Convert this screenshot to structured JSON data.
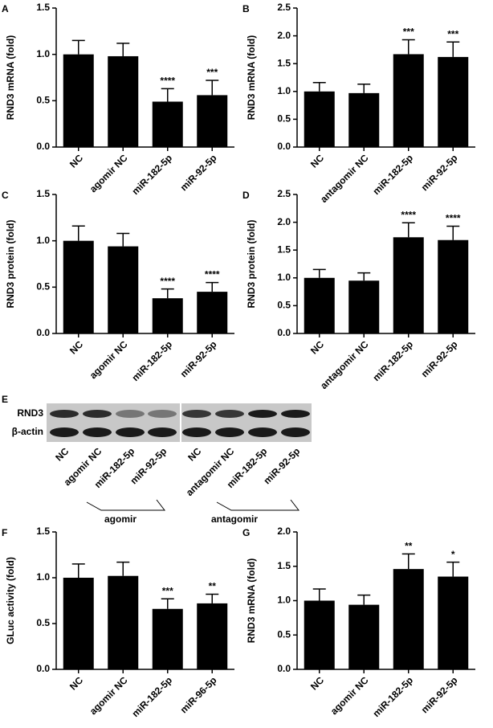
{
  "chart_data": [
    {
      "type": "bar",
      "panel": "A",
      "ylabel": "RND3 mRNA (fold)",
      "categories": [
        "NC",
        "agomir NC",
        "miR-182-5p",
        "miR-92-5p"
      ],
      "values": [
        1.0,
        0.98,
        0.49,
        0.56
      ],
      "errors": [
        0.15,
        0.14,
        0.14,
        0.16
      ],
      "annotations": [
        null,
        null,
        "****",
        "***"
      ],
      "color": "#000000",
      "ylim": [
        0,
        1.5
      ],
      "yticks": [
        {
          "value": 0,
          "label": "0.0"
        },
        0.5,
        {
          "value": 1,
          "label": "1.0"
        },
        1.5
      ]
    },
    {
      "type": "bar",
      "panel": "B",
      "ylabel": "RND3 mRNA (fold)",
      "categories": [
        "NC",
        "antagomir NC",
        "miR-182-5p",
        "miR-92-5p"
      ],
      "values": [
        1.0,
        0.97,
        1.67,
        1.62
      ],
      "errors": [
        0.16,
        0.16,
        0.26,
        0.27
      ],
      "annotations": [
        null,
        null,
        "***",
        "***"
      ],
      "color": "#000000",
      "ylim": [
        0,
        2.5
      ],
      "yticks": [
        {
          "value": 0,
          "label": "0.0"
        },
        0.5,
        {
          "value": 1,
          "label": "1.0"
        },
        1.5,
        {
          "value": 2,
          "label": "2.0"
        },
        2.5
      ]
    },
    {
      "type": "bar",
      "panel": "C",
      "ylabel": "RND3 protein (fold)",
      "categories": [
        "NC",
        "agomir NC",
        "miR-182-5p",
        "miR-92-5p"
      ],
      "values": [
        1.0,
        0.94,
        0.38,
        0.45
      ],
      "errors": [
        0.16,
        0.14,
        0.1,
        0.1
      ],
      "annotations": [
        null,
        null,
        "****",
        "****"
      ],
      "color": "#000000",
      "ylim": [
        0,
        1.5
      ],
      "yticks": [
        {
          "value": 0,
          "label": "0.0"
        },
        0.5,
        {
          "value": 1,
          "label": "1.0"
        },
        1.5
      ]
    },
    {
      "type": "bar",
      "panel": "D",
      "ylabel": "RND3 protein (fold)",
      "categories": [
        "NC",
        "antagomir NC",
        "miR-182-5p",
        "miR-92-5p"
      ],
      "values": [
        1.0,
        0.95,
        1.73,
        1.68
      ],
      "errors": [
        0.15,
        0.14,
        0.26,
        0.25
      ],
      "annotations": [
        null,
        null,
        "****",
        "****"
      ],
      "color": "#000000",
      "ylim": [
        0,
        2.5
      ],
      "yticks": [
        {
          "value": 0,
          "label": "0.0"
        },
        0.5,
        {
          "value": 1,
          "label": "1.0"
        },
        1.5,
        {
          "value": 2,
          "label": "2.0"
        },
        2.5
      ]
    },
    {
      "type": "bar",
      "panel": "F",
      "ylabel": "GLuc activity (fold)",
      "categories": [
        "NC",
        "agomir NC",
        "miR-182-5p",
        "miR-96-5p"
      ],
      "values": [
        1.0,
        1.02,
        0.66,
        0.72
      ],
      "errors": [
        0.15,
        0.15,
        0.11,
        0.1
      ],
      "annotations": [
        null,
        null,
        "***",
        "**"
      ],
      "color": "#000000",
      "ylim": [
        0,
        1.5
      ],
      "yticks": [
        {
          "value": 0,
          "label": "0.0"
        },
        0.5,
        {
          "value": 1,
          "label": "1.0"
        },
        1.5
      ]
    },
    {
      "type": "bar",
      "panel": "G",
      "ylabel": "RND3 mRNA (fold)",
      "categories": [
        "NC",
        "agomir NC",
        "miR-182-5p",
        "miR-92-5p"
      ],
      "values": [
        1.0,
        0.94,
        1.46,
        1.35
      ],
      "errors": [
        0.17,
        0.14,
        0.22,
        0.21
      ],
      "annotations": [
        null,
        null,
        "**",
        "*"
      ],
      "color": "#000000",
      "ylim": [
        0,
        2
      ],
      "yticks": [
        {
          "value": 0,
          "label": "0.0"
        },
        0.5,
        {
          "value": 1,
          "label": "1.0"
        },
        1.5,
        {
          "value": 2,
          "label": "2.0"
        }
      ]
    }
  ],
  "blot": {
    "panel": "E",
    "rows": [
      "RND3",
      "β-actin"
    ],
    "lanes": [
      "NC",
      "agomir NC",
      "miR-182-5p",
      "miR-92-5p",
      "NC",
      "antagomir NC",
      "miR-182-5p",
      "miR-92-5p"
    ],
    "groups": [
      "agomir",
      "antagomir"
    ]
  }
}
